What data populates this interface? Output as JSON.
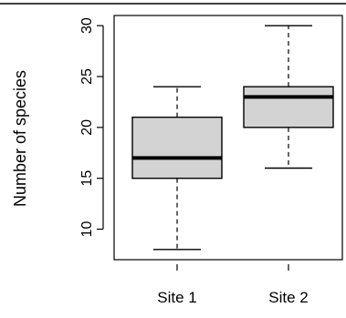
{
  "chart_data": {
    "type": "boxplot",
    "title": "",
    "xlabel": "",
    "ylabel": "Number of species",
    "ylim": [
      7,
      31
    ],
    "yticks": [
      10,
      15,
      20,
      25,
      30
    ],
    "grid": false,
    "categories": [
      "Site 1",
      "Site 2"
    ],
    "boxes": [
      {
        "category": "Site 1",
        "min": 8,
        "q1": 15,
        "median": 17,
        "q3": 21,
        "max": 24
      },
      {
        "category": "Site 2",
        "min": 16,
        "q1": 20,
        "median": 23,
        "q3": 24,
        "max": 30
      }
    ],
    "colors": {
      "box_fill": "#d3d3d3",
      "stroke": "#000000"
    }
  }
}
